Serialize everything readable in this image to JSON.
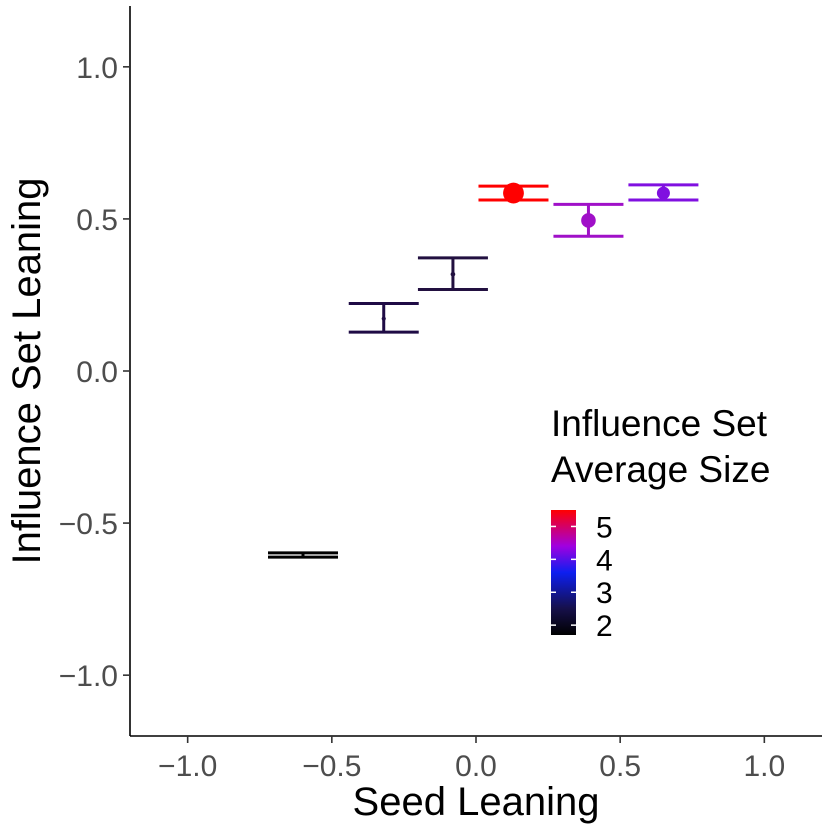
{
  "chart_data": {
    "type": "scatter",
    "title": "",
    "xlabel": "Seed Leaning",
    "ylabel": "Influence Set Leaning",
    "xlim": [
      -1.2,
      1.2
    ],
    "ylim": [
      -1.2,
      1.2
    ],
    "xticks": [
      -1.0,
      -0.5,
      0.0,
      0.5,
      1.0
    ],
    "xtick_labels": [
      "−1.0",
      "−0.5",
      "0.0",
      "0.5",
      "1.0"
    ],
    "yticks": [
      -1.0,
      -0.5,
      0.0,
      0.5,
      1.0
    ],
    "ytick_labels": [
      "−1.0",
      "−0.5",
      "0.0",
      "0.5",
      "1.0"
    ],
    "grid": false,
    "points": [
      {
        "x": -0.6,
        "y": -0.605,
        "ymin": -0.612,
        "ymax": -0.598,
        "size": 1.7,
        "color": "#000000"
      },
      {
        "x": -0.32,
        "y": 0.172,
        "ymin": 0.128,
        "ymax": 0.222,
        "size": 2.3,
        "color": "#1f0b45"
      },
      {
        "x": -0.08,
        "y": 0.318,
        "ymin": 0.268,
        "ymax": 0.372,
        "size": 2.4,
        "color": "#221040"
      },
      {
        "x": 0.13,
        "y": 0.585,
        "ymin": 0.562,
        "ymax": 0.608,
        "size": 5.5,
        "color": "#ff0000"
      },
      {
        "x": 0.39,
        "y": 0.495,
        "ymin": 0.443,
        "ymax": 0.548,
        "size": 4.3,
        "color": "#a010c8"
      },
      {
        "x": 0.65,
        "y": 0.585,
        "ymin": 0.562,
        "ymax": 0.612,
        "size": 4.0,
        "color": "#8010e0"
      }
    ],
    "legend": {
      "title_line1": "Influence Set",
      "title_line2": "Average Size",
      "position": "right-center",
      "range": [
        1.7,
        5.5
      ],
      "breaks": [
        2,
        3,
        4,
        5
      ],
      "break_labels": [
        "2",
        "3",
        "4",
        "5"
      ],
      "gradient": [
        {
          "value": 1.7,
          "color": "#000000"
        },
        {
          "value": 2.5,
          "color": "#16104a"
        },
        {
          "value": 3.6,
          "color": "#0d1ff0"
        },
        {
          "value": 4.4,
          "color": "#a000e0"
        },
        {
          "value": 5.5,
          "color": "#ff0000"
        }
      ]
    }
  }
}
